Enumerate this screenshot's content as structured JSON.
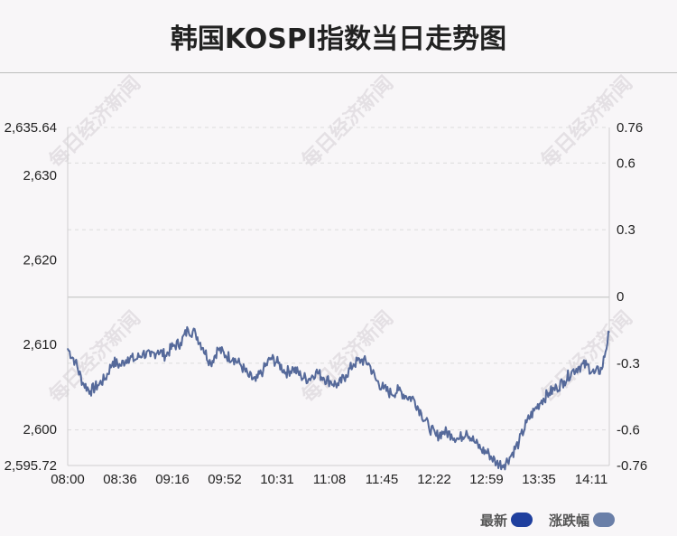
{
  "title": "韩国KOSPI指数当日走势图",
  "watermark": "每日经济新闻",
  "legend": {
    "latest_label": "最新",
    "latest_color": "#1f3f9e",
    "change_label": "涨跌幅",
    "change_color": "#6a7fa8"
  },
  "chart_data": {
    "type": "line",
    "title": "韩国KOSPI指数当日走势图",
    "x_tick_labels": [
      "08:00",
      "08:36",
      "09:16",
      "09:52",
      "10:31",
      "11:08",
      "11:45",
      "12:22",
      "12:59",
      "13:35",
      "14:11"
    ],
    "y_left": {
      "ylim": [
        2595.72,
        2635.64
      ],
      "tick_labels": [
        "2,595.72",
        "2,600",
        "2,610",
        "2,620",
        "2,630",
        "2,635.64"
      ],
      "tick_values": [
        2595.72,
        2600,
        2610,
        2620,
        2630,
        2635.64
      ]
    },
    "y_right": {
      "ylim": [
        -0.76,
        0.76
      ],
      "tick_labels": [
        "-0.76",
        "-0.6",
        "-0.3",
        "0",
        "0.3",
        "0.6",
        "0.76"
      ],
      "tick_values": [
        -0.76,
        -0.6,
        -0.3,
        0,
        0.3,
        0.6,
        0.76
      ]
    },
    "reference_value": 2615.6,
    "line_color": "#55699a",
    "grid": "dashed-horizontal",
    "series": [
      {
        "x": [
          "08:00",
          "08:05",
          "08:10",
          "08:15",
          "08:20",
          "08:25",
          "08:30",
          "08:36",
          "08:41",
          "08:46",
          "08:51",
          "08:56",
          "09:01",
          "09:06",
          "09:11",
          "09:16",
          "09:21",
          "09:26",
          "09:31",
          "09:36",
          "09:41",
          "09:46",
          "09:52",
          "09:57",
          "10:02",
          "10:07",
          "10:13",
          "10:18",
          "10:24",
          "10:31",
          "10:36",
          "10:41",
          "10:47",
          "10:52",
          "10:57",
          "11:03",
          "11:08",
          "11:13",
          "11:18",
          "11:24",
          "11:29",
          "11:34",
          "11:40",
          "11:45",
          "11:50",
          "11:55",
          "12:00",
          "12:06",
          "12:11",
          "12:17",
          "12:22",
          "12:27",
          "12:32",
          "12:38",
          "12:43",
          "12:48",
          "12:54",
          "12:59",
          "13:04",
          "13:09",
          "13:14",
          "13:20",
          "13:25",
          "13:30",
          "13:35",
          "13:40",
          "13:45",
          "13:50",
          "13:56",
          "14:01",
          "14:06",
          "14:11",
          "14:15"
        ],
        "values": [
          2609.5,
          2608.0,
          2605.5,
          2604.5,
          2605.2,
          2606.0,
          2608.0,
          2607.5,
          2608.5,
          2608.2,
          2609.0,
          2608.6,
          2609.3,
          2608.7,
          2609.8,
          2610.2,
          2611.8,
          2611.3,
          2609.6,
          2607.8,
          2609.5,
          2608.7,
          2608.4,
          2607.6,
          2606.3,
          2605.7,
          2607.0,
          2608.4,
          2607.8,
          2606.7,
          2607.2,
          2606.3,
          2605.9,
          2606.8,
          2606.1,
          2605.6,
          2605.2,
          2606.4,
          2607.7,
          2608.2,
          2607.8,
          2605.8,
          2604.8,
          2604.2,
          2604.6,
          2603.9,
          2603.6,
          2601.9,
          2600.3,
          2599.2,
          2599.7,
          2599.4,
          2598.8,
          2599.8,
          2598.6,
          2597.6,
          2597.1,
          2596.0,
          2595.8,
          2597.0,
          2598.5,
          2600.8,
          2602.2,
          2603.4,
          2604.3,
          2604.9,
          2605.7,
          2606.8,
          2607.4,
          2607.6,
          2606.6,
          2607.1,
          2611.5
        ]
      }
    ]
  }
}
